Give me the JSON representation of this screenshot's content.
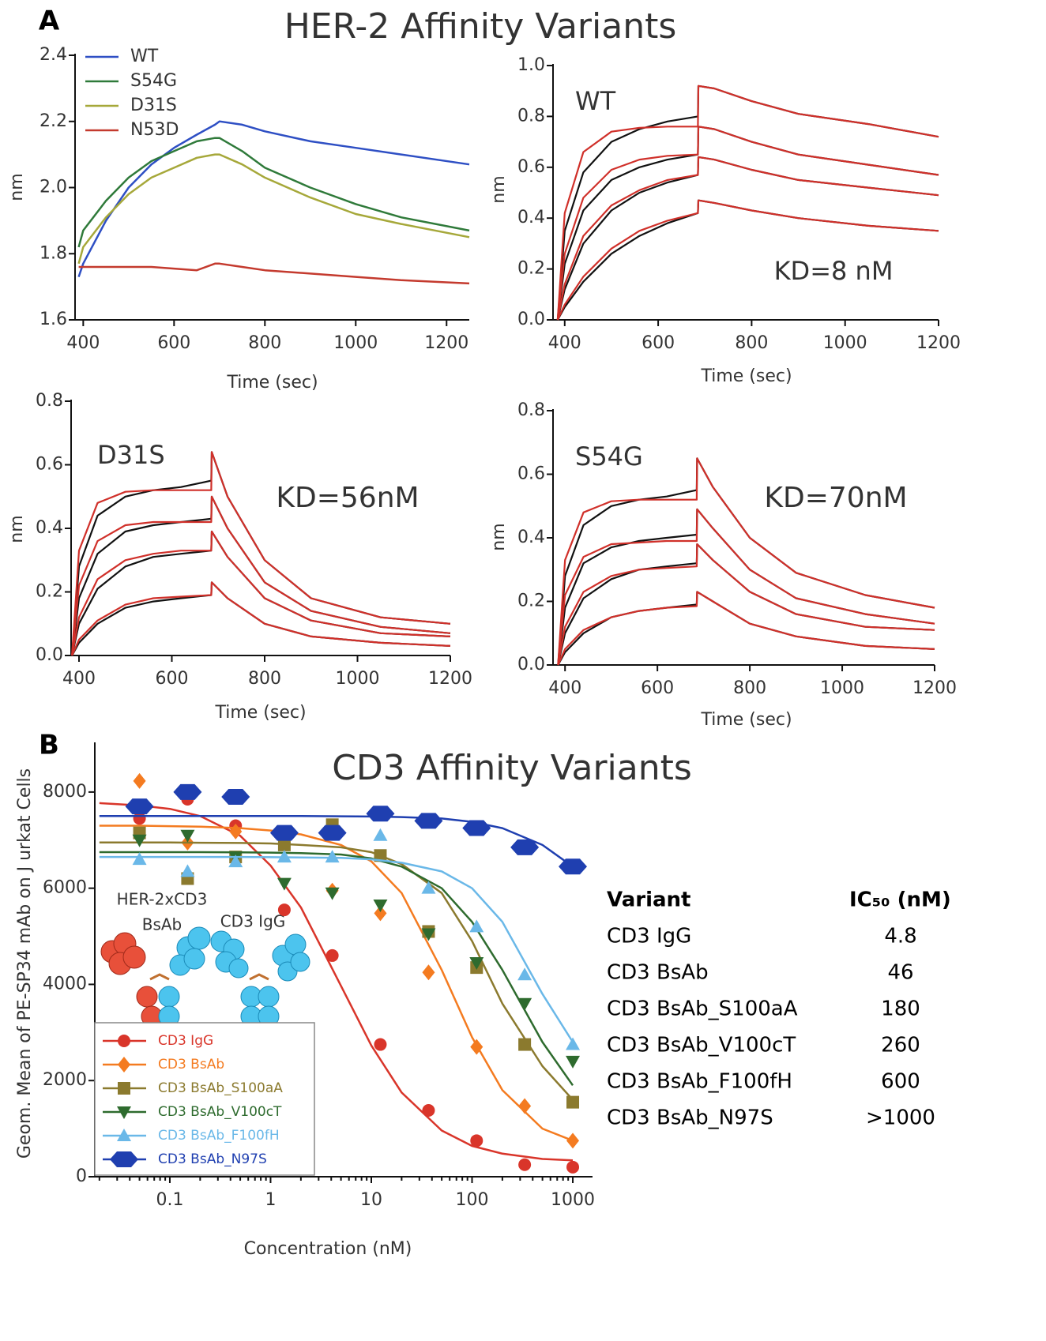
{
  "panels": [
    {
      "label": "A",
      "title": "HER-2 Affinity Variants"
    },
    {
      "label": "B"
    }
  ],
  "chart_data": [
    {
      "type": "line",
      "xlabel": "Time (sec)",
      "ylabel": "nm",
      "xlim": [
        382,
        1250
      ],
      "ylim": [
        1.6,
        2.4
      ],
      "xticks": [
        400,
        600,
        800,
        1000,
        1200
      ],
      "yticks": [
        1.6,
        1.8,
        {
          "value": 2,
          "label": "2.0"
        },
        2.2,
        2.4
      ],
      "legend": "upper left",
      "x": [
        390,
        400,
        450,
        500,
        550,
        600,
        650,
        690,
        700,
        750,
        800,
        900,
        1000,
        1100,
        1250
      ],
      "series": [
        {
          "name": "WT",
          "color": "#2e4fc4",
          "values": [
            1.73,
            1.77,
            1.9,
            2.0,
            2.07,
            2.12,
            2.16,
            2.19,
            2.2,
            2.19,
            2.17,
            2.14,
            2.12,
            2.1,
            2.07
          ]
        },
        {
          "name": "S54G",
          "color": "#2f7a3a",
          "values": [
            1.82,
            1.87,
            1.96,
            2.03,
            2.08,
            2.11,
            2.14,
            2.15,
            2.15,
            2.11,
            2.06,
            2.0,
            1.95,
            1.91,
            1.87
          ]
        },
        {
          "name": "D31S",
          "color": "#a6a83a",
          "values": [
            1.77,
            1.82,
            1.91,
            1.98,
            2.03,
            2.06,
            2.09,
            2.1,
            2.1,
            2.07,
            2.03,
            1.97,
            1.92,
            1.89,
            1.85
          ]
        },
        {
          "name": "N53D",
          "color": "#c43a2e",
          "values": [
            1.76,
            1.76,
            1.76,
            1.76,
            1.76,
            1.755,
            1.75,
            1.77,
            1.77,
            1.76,
            1.75,
            1.74,
            1.73,
            1.72,
            1.71
          ]
        }
      ]
    },
    {
      "type": "line",
      "xlabel": "Time (sec)",
      "ylabel": "nm",
      "xlim": [
        375,
        1200
      ],
      "ylim": [
        0,
        1
      ],
      "xticks": [
        400,
        600,
        800,
        1000,
        1200
      ],
      "yticks": [
        {
          "value": 0,
          "label": "0.0"
        },
        0.2,
        0.4,
        0.6,
        0.8,
        {
          "value": 1,
          "label": "1.0"
        }
      ],
      "annotations": [
        "WT",
        "KD=8 nM"
      ],
      "x": [
        385,
        400,
        440,
        500,
        560,
        620,
        685,
        686,
        720,
        800,
        900,
        1050,
        1200
      ],
      "series": [
        {
          "color": "#111111",
          "values": [
            0,
            0.35,
            0.58,
            0.7,
            0.75,
            0.78,
            0.8,
            0.92,
            0.91,
            0.86,
            0.81,
            0.77,
            0.72
          ]
        },
        {
          "color": "#111111",
          "values": [
            0,
            0.22,
            0.43,
            0.55,
            0.6,
            0.63,
            0.65,
            0.76,
            0.75,
            0.7,
            0.65,
            0.61,
            0.57
          ]
        },
        {
          "color": "#111111",
          "values": [
            0,
            0.12,
            0.3,
            0.43,
            0.5,
            0.54,
            0.57,
            0.64,
            0.63,
            0.59,
            0.55,
            0.52,
            0.49
          ]
        },
        {
          "color": "#111111",
          "values": [
            0,
            0.05,
            0.15,
            0.26,
            0.33,
            0.38,
            0.42,
            0.47,
            0.46,
            0.43,
            0.4,
            0.37,
            0.35
          ]
        },
        {
          "color": "#d0302a",
          "values": [
            0,
            0.42,
            0.66,
            0.74,
            0.755,
            0.76,
            0.76,
            0.92,
            0.91,
            0.86,
            0.81,
            0.77,
            0.72
          ]
        },
        {
          "color": "#d0302a",
          "values": [
            0,
            0.26,
            0.48,
            0.59,
            0.63,
            0.645,
            0.65,
            0.76,
            0.75,
            0.7,
            0.65,
            0.61,
            0.57
          ]
        },
        {
          "color": "#d0302a",
          "values": [
            0,
            0.14,
            0.33,
            0.45,
            0.51,
            0.55,
            0.57,
            0.64,
            0.63,
            0.59,
            0.55,
            0.52,
            0.49
          ]
        },
        {
          "color": "#d0302a",
          "values": [
            0,
            0.06,
            0.17,
            0.28,
            0.35,
            0.39,
            0.42,
            0.47,
            0.46,
            0.43,
            0.4,
            0.37,
            0.35
          ]
        }
      ]
    },
    {
      "type": "line",
      "xlabel": "Time (sec)",
      "ylabel": "nm",
      "xlim": [
        383,
        1200
      ],
      "ylim": [
        0,
        0.8
      ],
      "xticks": [
        400,
        600,
        800,
        1000,
        1200
      ],
      "yticks": [
        {
          "value": 0,
          "label": "0.0"
        },
        0.2,
        0.4,
        0.6,
        0.8
      ],
      "annotations": [
        "D31S",
        "KD=56nM"
      ],
      "x": [
        385,
        400,
        440,
        500,
        560,
        620,
        685,
        686,
        720,
        800,
        900,
        1050,
        1200
      ],
      "series": [
        {
          "color": "#111111",
          "values": [
            0,
            0.28,
            0.44,
            0.5,
            0.52,
            0.53,
            0.55,
            0.64,
            0.5,
            0.3,
            0.18,
            0.12,
            0.1
          ]
        },
        {
          "color": "#111111",
          "values": [
            0,
            0.18,
            0.32,
            0.39,
            0.41,
            0.42,
            0.43,
            0.5,
            0.4,
            0.23,
            0.14,
            0.09,
            0.07
          ]
        },
        {
          "color": "#111111",
          "values": [
            0,
            0.1,
            0.21,
            0.28,
            0.31,
            0.32,
            0.33,
            0.39,
            0.31,
            0.18,
            0.11,
            0.07,
            0.06
          ]
        },
        {
          "color": "#111111",
          "values": [
            0,
            0.04,
            0.1,
            0.15,
            0.17,
            0.18,
            0.19,
            0.23,
            0.18,
            0.1,
            0.06,
            0.04,
            0.03
          ]
        },
        {
          "color": "#d0302a",
          "values": [
            0,
            0.33,
            0.48,
            0.515,
            0.52,
            0.52,
            0.52,
            0.64,
            0.5,
            0.3,
            0.18,
            0.12,
            0.1
          ]
        },
        {
          "color": "#d0302a",
          "values": [
            0,
            0.22,
            0.36,
            0.41,
            0.42,
            0.42,
            0.42,
            0.5,
            0.4,
            0.23,
            0.14,
            0.09,
            0.07
          ]
        },
        {
          "color": "#d0302a",
          "values": [
            0,
            0.12,
            0.24,
            0.3,
            0.32,
            0.33,
            0.33,
            0.39,
            0.31,
            0.18,
            0.11,
            0.07,
            0.06
          ]
        },
        {
          "color": "#d0302a",
          "values": [
            0,
            0.05,
            0.11,
            0.16,
            0.18,
            0.185,
            0.19,
            0.23,
            0.18,
            0.1,
            0.06,
            0.04,
            0.03
          ]
        }
      ]
    },
    {
      "type": "line",
      "xlabel": "Time (sec)",
      "ylabel": "nm",
      "xlim": [
        374,
        1200
      ],
      "ylim": [
        0,
        0.8
      ],
      "xticks": [
        400,
        600,
        800,
        1000,
        1200
      ],
      "yticks": [
        {
          "value": 0,
          "label": "0.0"
        },
        0.2,
        0.4,
        0.6,
        0.8
      ],
      "annotations": [
        "S54G",
        "KD=70nM"
      ],
      "x": [
        385,
        400,
        440,
        500,
        560,
        620,
        685,
        686,
        720,
        800,
        900,
        1050,
        1200
      ],
      "series": [
        {
          "color": "#111111",
          "values": [
            0,
            0.28,
            0.44,
            0.5,
            0.52,
            0.53,
            0.55,
            0.65,
            0.56,
            0.4,
            0.29,
            0.22,
            0.18
          ]
        },
        {
          "color": "#111111",
          "values": [
            0,
            0.18,
            0.32,
            0.37,
            0.39,
            0.4,
            0.41,
            0.49,
            0.43,
            0.3,
            0.21,
            0.16,
            0.13
          ]
        },
        {
          "color": "#111111",
          "values": [
            0,
            0.1,
            0.21,
            0.27,
            0.3,
            0.31,
            0.32,
            0.38,
            0.33,
            0.23,
            0.16,
            0.12,
            0.11
          ]
        },
        {
          "color": "#111111",
          "values": [
            0,
            0.04,
            0.1,
            0.15,
            0.17,
            0.18,
            0.19,
            0.23,
            0.2,
            0.13,
            0.09,
            0.06,
            0.05
          ]
        },
        {
          "color": "#d0302a",
          "values": [
            0,
            0.33,
            0.48,
            0.515,
            0.52,
            0.52,
            0.52,
            0.65,
            0.56,
            0.4,
            0.29,
            0.22,
            0.18
          ]
        },
        {
          "color": "#d0302a",
          "values": [
            0,
            0.22,
            0.34,
            0.38,
            0.385,
            0.39,
            0.39,
            0.49,
            0.43,
            0.3,
            0.21,
            0.16,
            0.13
          ]
        },
        {
          "color": "#d0302a",
          "values": [
            0,
            0.12,
            0.23,
            0.28,
            0.3,
            0.305,
            0.31,
            0.38,
            0.33,
            0.23,
            0.16,
            0.12,
            0.11
          ]
        },
        {
          "color": "#d0302a",
          "values": [
            0,
            0.05,
            0.11,
            0.15,
            0.17,
            0.18,
            0.185,
            0.23,
            0.2,
            0.13,
            0.09,
            0.06,
            0.05
          ]
        }
      ]
    },
    {
      "type": "scatter",
      "title": "CD3 Affinity Variants",
      "xlabel": "Concentration (nM)",
      "ylabel": "Geom. Mean of PE-SP34 mAb on J urkat Cells",
      "xscale": "log",
      "xlim": [
        0.018,
        1570
      ],
      "ylim": [
        0,
        9000
      ],
      "xticks": [
        0.1,
        1,
        10,
        100,
        1000
      ],
      "yticks": [
        0,
        2000,
        4000,
        6000,
        8000
      ],
      "legend": "lower left",
      "inset_labels": [
        "HER-2xCD3",
        "BsAb",
        "CD3 IgG"
      ],
      "x": [
        0.05,
        0.15,
        0.45,
        1.37,
        4.1,
        12.3,
        37,
        111,
        333,
        1000
      ],
      "fit_x": [
        0.02,
        0.05,
        0.1,
        0.2,
        0.5,
        1,
        2,
        5,
        10,
        20,
        50,
        100,
        200,
        500,
        1000
      ],
      "series": [
        {
          "name": "CD3 IgG",
          "color": "#d9352a",
          "marker": "circle",
          "values": [
            7450,
            7850,
            7300,
            5550,
            4600,
            2750,
            1380,
            750,
            250,
            200
          ],
          "fit": [
            7770,
            7720,
            7650,
            7500,
            7090,
            6470,
            5600,
            3970,
            2730,
            1750,
            960,
            640,
            480,
            370,
            340
          ]
        },
        {
          "name": "CD3 BsAb",
          "color": "#f47b20",
          "marker": "diamond",
          "values": [
            8230,
            6950,
            7180,
            6950,
            5950,
            5480,
            4250,
            2700,
            1470,
            750
          ],
          "fit": [
            7300,
            7300,
            7290,
            7280,
            7250,
            7200,
            7120,
            6900,
            6560,
            5900,
            4300,
            2900,
            1800,
            1000,
            750
          ]
        },
        {
          "name": "CD3 BsAb_S100aA",
          "color": "#8b7a2e",
          "marker": "square",
          "values": [
            7150,
            6200,
            6650,
            6900,
            7320,
            6680,
            5100,
            4350,
            2750,
            1550
          ],
          "fit": [
            6950,
            6950,
            6950,
            6945,
            6940,
            6930,
            6900,
            6850,
            6750,
            6500,
            5900,
            4900,
            3600,
            2300,
            1600
          ]
        },
        {
          "name": "CD3 BsAb_V100cT",
          "color": "#2e6b2e",
          "marker": "down",
          "values": [
            7000,
            7100,
            6650,
            6100,
            5900,
            5650,
            5050,
            4450,
            3600,
            2400
          ],
          "fit": [
            6750,
            6750,
            6750,
            6750,
            6745,
            6740,
            6730,
            6700,
            6620,
            6450,
            6000,
            5300,
            4300,
            2800,
            1900
          ]
        },
        {
          "name": "CD3 BsAb_F100fH",
          "color": "#6ab8e8",
          "marker": "up",
          "values": [
            6600,
            6350,
            6550,
            6650,
            6650,
            7100,
            6000,
            5200,
            4200,
            2750
          ],
          "fit": [
            6650,
            6650,
            6650,
            6650,
            6650,
            6645,
            6640,
            6630,
            6600,
            6530,
            6350,
            6000,
            5300,
            3800,
            2800
          ]
        },
        {
          "name": "CD3 BsAb_N97S",
          "color": "#1f3fb0",
          "marker": "hexagon",
          "values": [
            7700,
            8000,
            7900,
            7150,
            7150,
            7550,
            7400,
            7250,
            6850,
            6450
          ],
          "fit": [
            7500,
            7500,
            7500,
            7500,
            7500,
            7500,
            7500,
            7495,
            7490,
            7480,
            7450,
            7380,
            7250,
            6900,
            6450
          ]
        }
      ]
    }
  ],
  "table": {
    "header": [
      "Variant",
      "IC₅₀ (nM)"
    ],
    "rows": [
      [
        "CD3 IgG",
        "4.8"
      ],
      [
        "CD3 BsAb",
        "46"
      ],
      [
        "CD3 BsAb_S100aA",
        "180"
      ],
      [
        "CD3 BsAb_V100cT",
        "260"
      ],
      [
        "CD3 BsAb_F100fH",
        "600"
      ],
      [
        "CD3 BsAb_N97S",
        ">1000"
      ]
    ]
  }
}
